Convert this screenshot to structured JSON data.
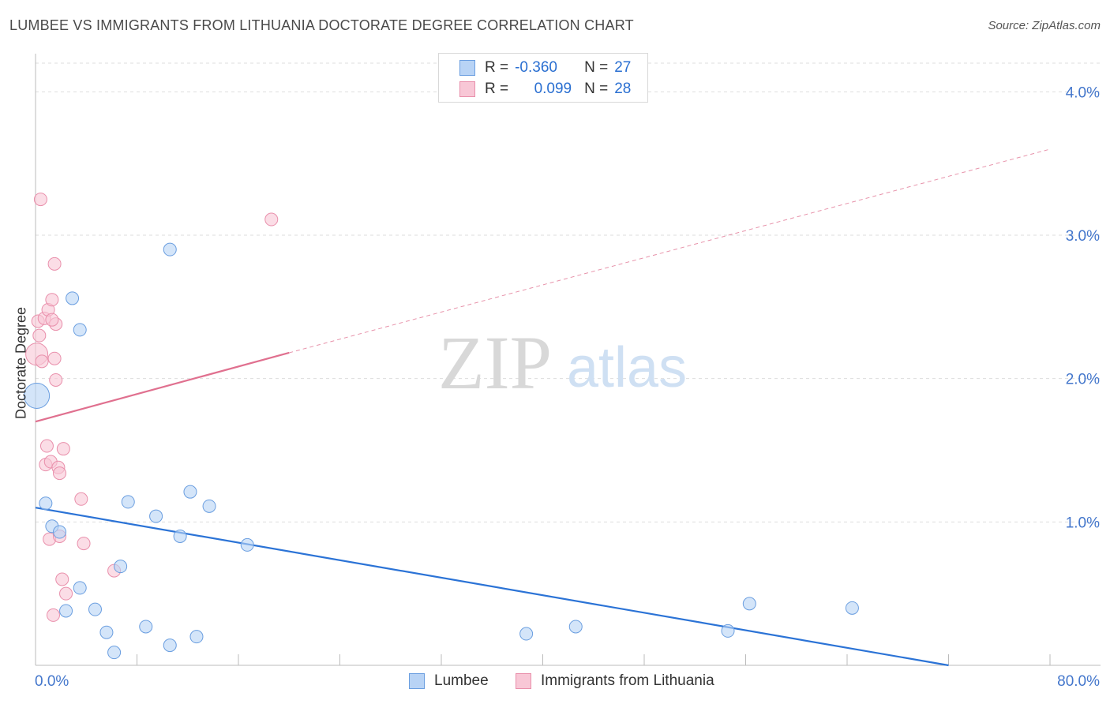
{
  "header": {
    "title": "LUMBEE VS IMMIGRANTS FROM LITHUANIA DOCTORATE DEGREE CORRELATION CHART",
    "source": "Source: ZipAtlas.com"
  },
  "watermark": {
    "zip": "ZIP",
    "atlas": "atlas"
  },
  "legend": {
    "lumbee": {
      "r_label": "R =",
      "r_value": "-0.360",
      "n_label": "N =",
      "n_value": "27"
    },
    "lithuania": {
      "r_label": "R =",
      "r_value": "0.099",
      "n_label": "N =",
      "n_value": "28"
    }
  },
  "colors": {
    "lumbee_fill": "#b8d3f5",
    "lumbee_stroke": "#6a9ee0",
    "lumbee_line": "#2b73d6",
    "lith_fill": "#f8c7d6",
    "lith_stroke": "#e98fab",
    "lith_line": "#e0708f",
    "grid": "#dddddd",
    "axis_text": "#4477cc"
  },
  "chart_data": {
    "type": "scatter",
    "title": "LUMBEE VS IMMIGRANTS FROM LITHUANIA DOCTORATE DEGREE CORRELATION CHART",
    "xlabel": "",
    "ylabel": "Doctorate Degree",
    "xlim": [
      0,
      80
    ],
    "ylim": [
      0,
      4.2
    ],
    "x_tick_labels": [
      "0.0%",
      "80.0%"
    ],
    "y_ticks": [
      1,
      2,
      3,
      4
    ],
    "y_tick_labels": [
      "1.0%",
      "2.0%",
      "3.0%",
      "4.0%"
    ],
    "series": [
      {
        "name": "Lumbee",
        "r": -0.36,
        "n": 27,
        "points": [
          {
            "x": 0.1,
            "y": 1.88,
            "size": 3
          },
          {
            "x": 0.8,
            "y": 1.13,
            "size": 1
          },
          {
            "x": 1.3,
            "y": 0.97,
            "size": 1
          },
          {
            "x": 1.9,
            "y": 0.93,
            "size": 1
          },
          {
            "x": 2.4,
            "y": 0.38,
            "size": 1
          },
          {
            "x": 2.9,
            "y": 2.56,
            "size": 1
          },
          {
            "x": 3.5,
            "y": 2.34,
            "size": 1
          },
          {
            "x": 3.5,
            "y": 0.54,
            "size": 1
          },
          {
            "x": 4.7,
            "y": 0.39,
            "size": 1
          },
          {
            "x": 5.6,
            "y": 0.23,
            "size": 1
          },
          {
            "x": 6.2,
            "y": 0.09,
            "size": 1
          },
          {
            "x": 6.7,
            "y": 0.69,
            "size": 1
          },
          {
            "x": 7.3,
            "y": 1.14,
            "size": 1
          },
          {
            "x": 8.7,
            "y": 0.27,
            "size": 1
          },
          {
            "x": 9.5,
            "y": 1.04,
            "size": 1
          },
          {
            "x": 10.6,
            "y": 2.9,
            "size": 1
          },
          {
            "x": 10.6,
            "y": 0.14,
            "size": 1
          },
          {
            "x": 11.4,
            "y": 0.9,
            "size": 1
          },
          {
            "x": 12.2,
            "y": 1.21,
            "size": 1
          },
          {
            "x": 12.7,
            "y": 0.2,
            "size": 1
          },
          {
            "x": 13.7,
            "y": 1.11,
            "size": 1
          },
          {
            "x": 16.7,
            "y": 0.84,
            "size": 1
          },
          {
            "x": 38.7,
            "y": 0.22,
            "size": 1
          },
          {
            "x": 42.6,
            "y": 0.27,
            "size": 1
          },
          {
            "x": 54.6,
            "y": 0.24,
            "size": 1
          },
          {
            "x": 56.3,
            "y": 0.43,
            "size": 1
          },
          {
            "x": 64.4,
            "y": 0.4,
            "size": 1
          }
        ],
        "trend": {
          "x0": 0,
          "y0": 1.1,
          "x1": 72,
          "y1": 0.0,
          "dashed_to": null
        }
      },
      {
        "name": "Immigrants from Lithuania",
        "r": 0.099,
        "n": 28,
        "points": [
          {
            "x": 0.1,
            "y": 2.17,
            "size": 2
          },
          {
            "x": 0.2,
            "y": 2.4,
            "size": 1
          },
          {
            "x": 0.3,
            "y": 2.3,
            "size": 1
          },
          {
            "x": 0.4,
            "y": 3.25,
            "size": 1
          },
          {
            "x": 0.5,
            "y": 2.12,
            "size": 1
          },
          {
            "x": 0.7,
            "y": 2.42,
            "size": 1
          },
          {
            "x": 0.8,
            "y": 1.4,
            "size": 1
          },
          {
            "x": 0.9,
            "y": 1.53,
            "size": 1
          },
          {
            "x": 1.0,
            "y": 2.48,
            "size": 1
          },
          {
            "x": 1.1,
            "y": 0.88,
            "size": 1
          },
          {
            "x": 1.2,
            "y": 1.42,
            "size": 1
          },
          {
            "x": 1.3,
            "y": 2.55,
            "size": 1
          },
          {
            "x": 1.4,
            "y": 0.35,
            "size": 1
          },
          {
            "x": 1.5,
            "y": 2.8,
            "size": 1
          },
          {
            "x": 1.5,
            "y": 2.14,
            "size": 1
          },
          {
            "x": 1.6,
            "y": 2.38,
            "size": 1
          },
          {
            "x": 1.6,
            "y": 1.99,
            "size": 1
          },
          {
            "x": 1.8,
            "y": 1.38,
            "size": 1
          },
          {
            "x": 1.9,
            "y": 1.34,
            "size": 1
          },
          {
            "x": 1.9,
            "y": 0.9,
            "size": 1
          },
          {
            "x": 2.1,
            "y": 0.6,
            "size": 1
          },
          {
            "x": 2.2,
            "y": 1.51,
            "size": 1
          },
          {
            "x": 2.4,
            "y": 0.5,
            "size": 1
          },
          {
            "x": 3.6,
            "y": 1.16,
            "size": 1
          },
          {
            "x": 3.8,
            "y": 0.85,
            "size": 1
          },
          {
            "x": 6.2,
            "y": 0.66,
            "size": 1
          },
          {
            "x": 18.6,
            "y": 3.11,
            "size": 1
          },
          {
            "x": 1.3,
            "y": 2.41,
            "size": 1
          }
        ],
        "trend": {
          "x0": 0,
          "y0": 1.7,
          "x1": 20,
          "y1": 2.18,
          "dashed_to": {
            "x": 80,
            "y": 3.6
          }
        }
      }
    ]
  },
  "bottom_legend": {
    "lumbee": "Lumbee",
    "lithuania": "Immigrants from Lithuania"
  }
}
